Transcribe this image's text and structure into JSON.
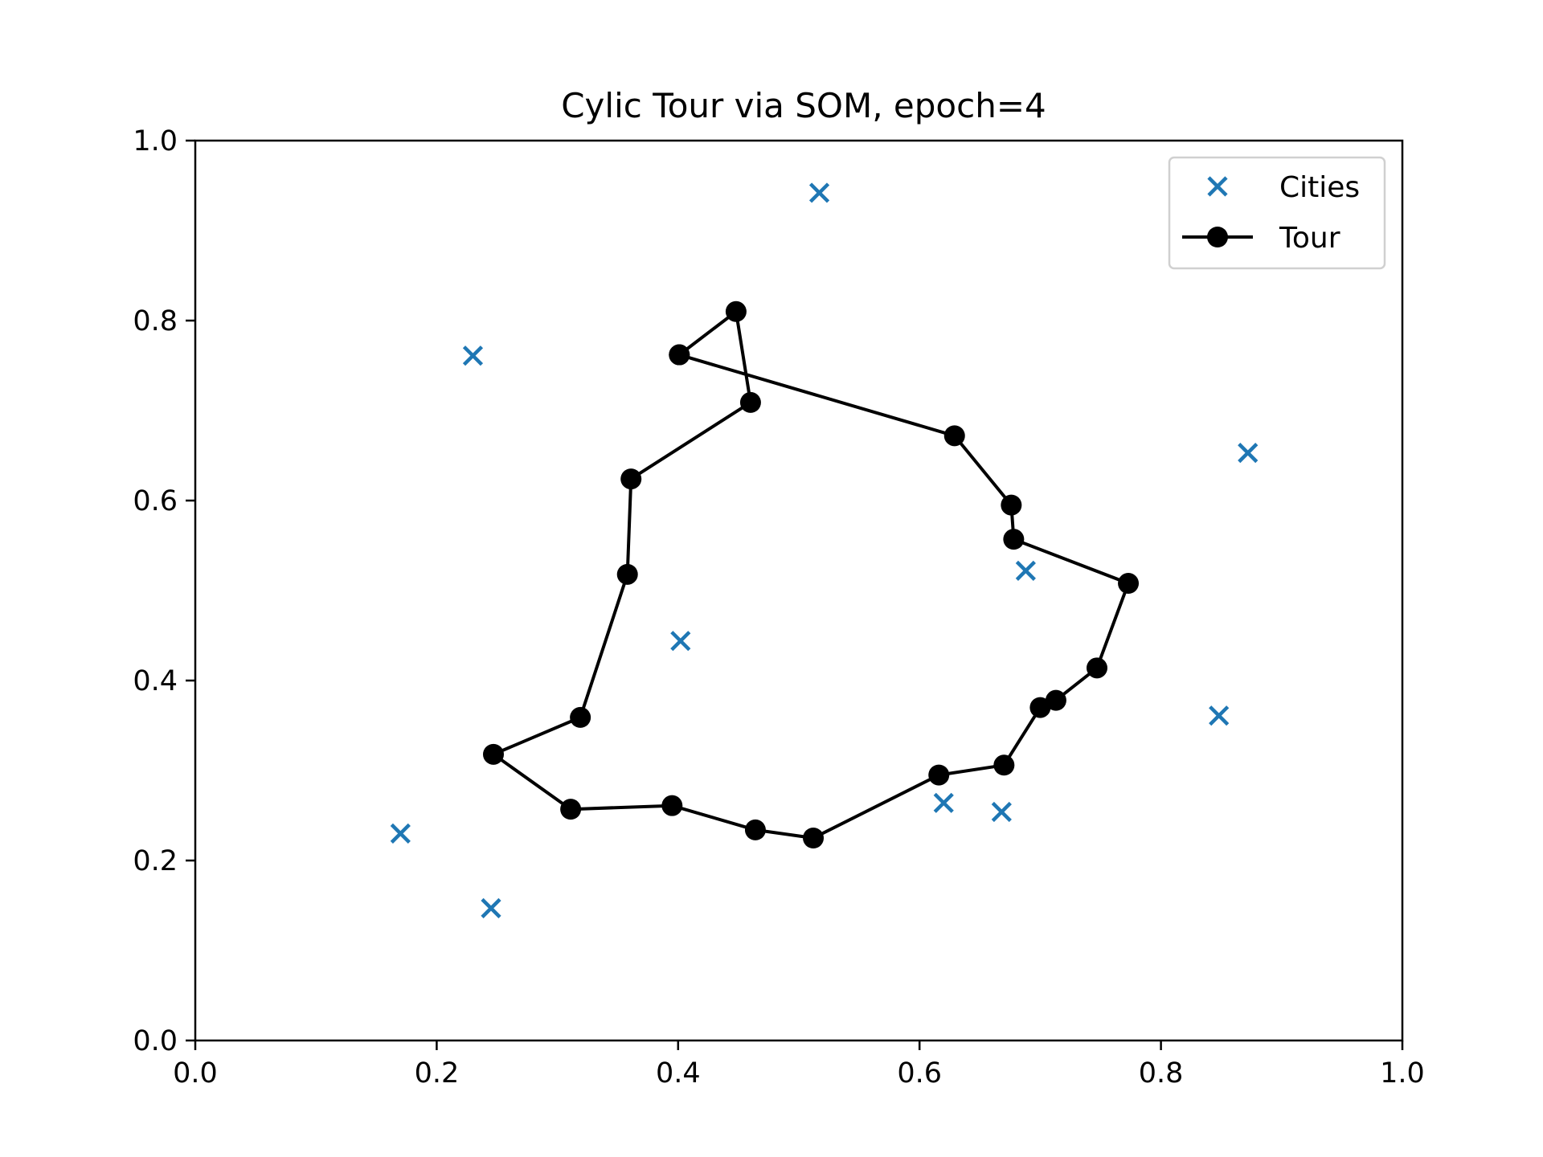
{
  "chart_data": {
    "type": "scatter",
    "title": "Cylic Tour via SOM, epoch=4",
    "xlabel": "",
    "ylabel": "",
    "xlim": [
      0.0,
      1.0
    ],
    "ylim": [
      0.0,
      1.0
    ],
    "x_ticks": [
      "0.0",
      "0.2",
      "0.4",
      "0.6",
      "0.8",
      "1.0"
    ],
    "y_ticks": [
      "0.0",
      "0.2",
      "0.4",
      "0.6",
      "0.8",
      "1.0"
    ],
    "grid": false,
    "legend_position": "top-right",
    "series": [
      {
        "name": "Cities",
        "kind": "scatter",
        "marker": "x",
        "color": "#1f77b4",
        "points": [
          [
            0.517,
            0.942
          ],
          [
            0.23,
            0.761
          ],
          [
            0.872,
            0.653
          ],
          [
            0.688,
            0.522
          ],
          [
            0.402,
            0.444
          ],
          [
            0.848,
            0.361
          ],
          [
            0.62,
            0.264
          ],
          [
            0.668,
            0.254
          ],
          [
            0.17,
            0.23
          ],
          [
            0.245,
            0.147
          ]
        ]
      },
      {
        "name": "Tour",
        "kind": "line",
        "marker": "o",
        "color": "#000000",
        "points": [
          [
            0.401,
            0.762
          ],
          [
            0.448,
            0.81
          ],
          [
            0.46,
            0.709
          ],
          [
            0.361,
            0.624
          ],
          [
            0.358,
            0.518
          ],
          [
            0.319,
            0.359
          ],
          [
            0.247,
            0.318
          ],
          [
            0.311,
            0.257
          ],
          [
            0.395,
            0.261
          ],
          [
            0.464,
            0.234
          ],
          [
            0.512,
            0.225
          ],
          [
            0.616,
            0.295
          ],
          [
            0.67,
            0.306
          ],
          [
            0.7,
            0.37
          ],
          [
            0.713,
            0.378
          ],
          [
            0.747,
            0.414
          ],
          [
            0.773,
            0.508
          ],
          [
            0.678,
            0.557
          ],
          [
            0.676,
            0.595
          ],
          [
            0.629,
            0.672
          ],
          [
            0.401,
            0.762
          ]
        ]
      }
    ]
  }
}
